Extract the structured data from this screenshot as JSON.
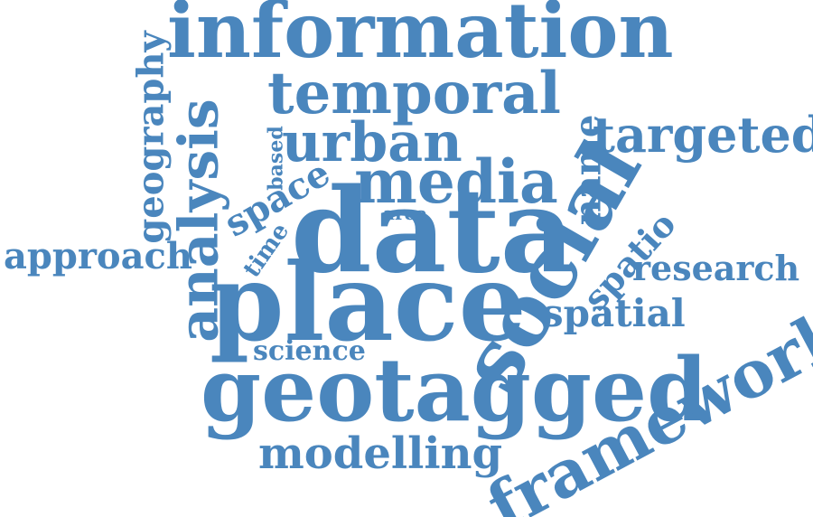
{
  "palette": {
    "word": "#4a86bd",
    "background": "#ffffff"
  },
  "words": [
    "information",
    "temporal",
    "urban",
    "media",
    "targeted",
    "name",
    "social",
    "data",
    "place",
    "geotagged",
    "framework",
    "modelling",
    "science",
    "spatial",
    "research",
    "spatio",
    "area",
    "based",
    "space",
    "time",
    "analysis",
    "geography",
    "approach"
  ]
}
